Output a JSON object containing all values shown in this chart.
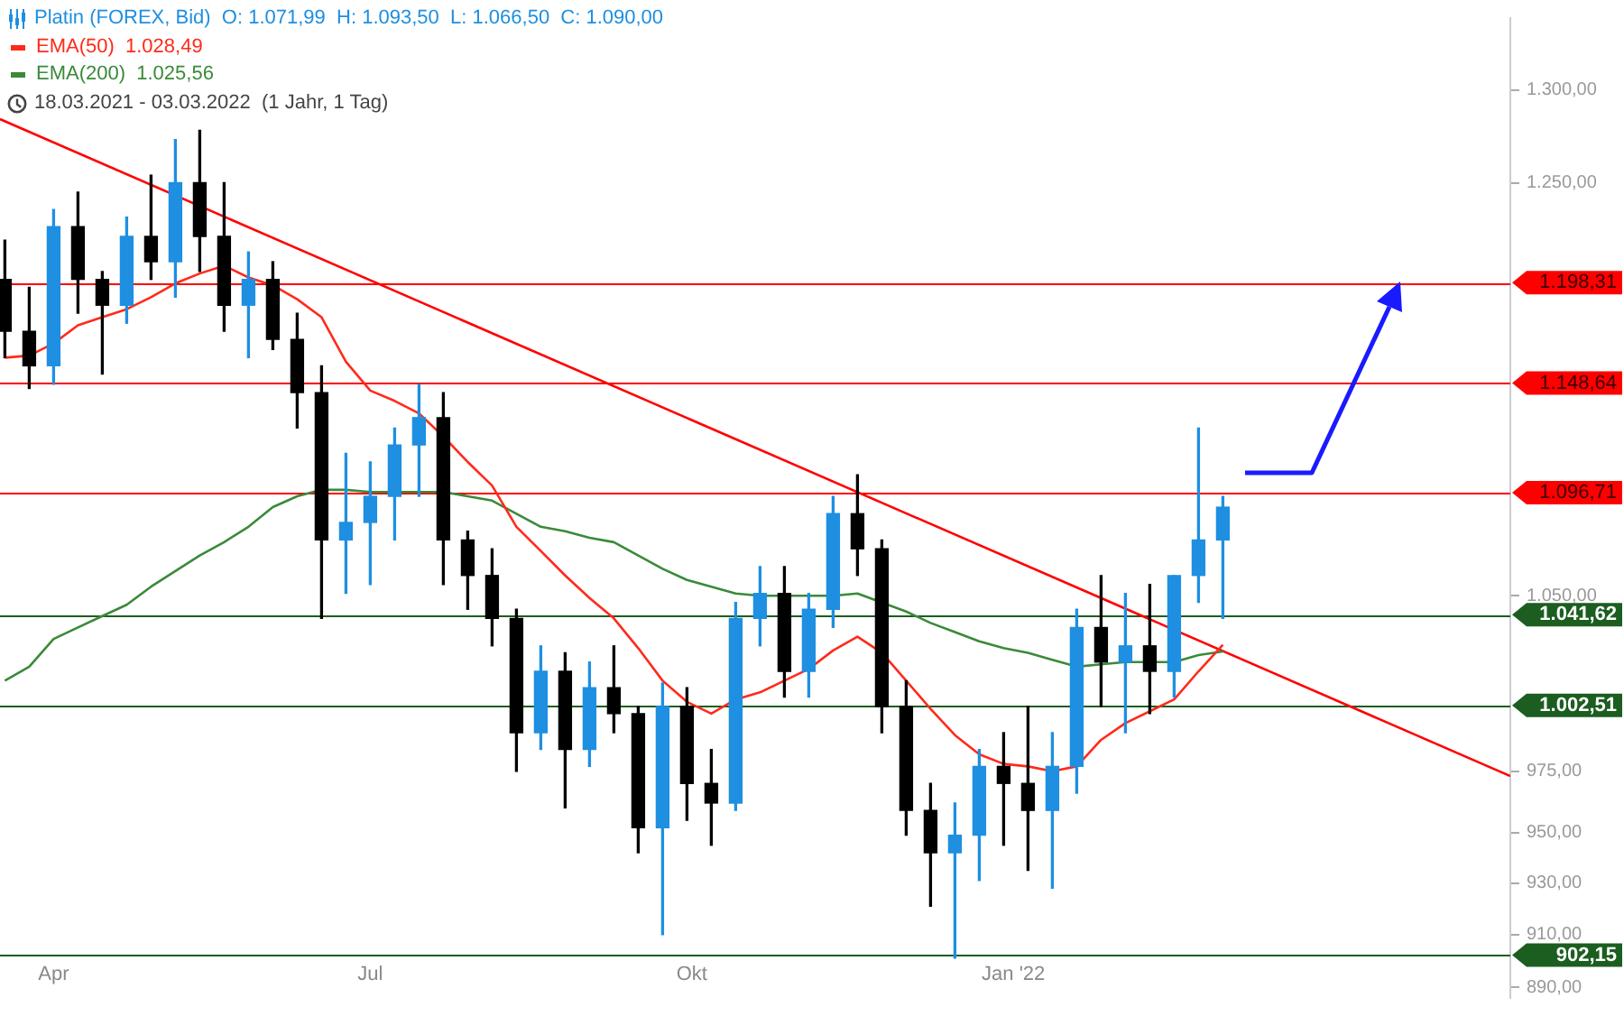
{
  "chart_data": {
    "type": "candlestick",
    "log": "y",
    "legend": "top left",
    "marker": "none",
    "line_style": "solid",
    "x": [
      "2021-03-18",
      "2021-03-25",
      "2021-04-01",
      "2021-04-08",
      "2021-04-15",
      "2021-04-22",
      "2021-04-29",
      "2021-05-06",
      "2021-05-13",
      "2021-05-20",
      "2021-05-27",
      "2021-06-03",
      "2021-06-10",
      "2021-06-17",
      "2021-06-24",
      "2021-07-01",
      "2021-07-08",
      "2021-07-15",
      "2021-07-22",
      "2021-07-29",
      "2021-08-05",
      "2021-08-12",
      "2021-08-19",
      "2021-08-26",
      "2021-09-02",
      "2021-09-09",
      "2021-09-16",
      "2021-09-23",
      "2021-09-30",
      "2021-10-07",
      "2021-10-14",
      "2021-10-21",
      "2021-10-28",
      "2021-11-04",
      "2021-11-11",
      "2021-11-18",
      "2021-11-25",
      "2021-12-02",
      "2021-12-09",
      "2021-12-16",
      "2021-12-23",
      "2021-12-30",
      "2022-01-06",
      "2022-01-13",
      "2022-01-20",
      "2022-01-27",
      "2022-02-03",
      "2022-02-10",
      "2022-02-17",
      "2022-02-24",
      "2022-03-03"
    ],
    "xlim": [
      "2021-03-17",
      "2022-05-25"
    ],
    "xticks": [
      {
        "value": "2021-04-01",
        "label": "Apr"
      },
      {
        "value": "2021-07-01",
        "label": "Jul"
      },
      {
        "value": "2021-10-01",
        "label": "Okt"
      },
      {
        "value": "2022-01-03",
        "label": "Jan '22"
      }
    ],
    "ylim": [
      886,
      1340
    ],
    "yticks": [
      {
        "value": 1300,
        "label": "1.300,00"
      },
      {
        "value": 1250,
        "label": "1.250,00"
      },
      {
        "value": 1050,
        "label": "1.050,00"
      },
      {
        "value": 975,
        "label": "975,00"
      },
      {
        "value": 950,
        "label": "950,00"
      },
      {
        "value": 930,
        "label": "930,00"
      },
      {
        "value": 910,
        "label": "910,00"
      },
      {
        "value": 890,
        "label": "890,00"
      }
    ],
    "annotations": [
      "O: 1.071,99  H: 1.093,50  L: 1.066,50  C: 1.090,00",
      "18.03.2021 - 03.03.2022  (1 Jahr, 1 Tag)"
    ],
    "ref_lines": [
      {
        "axis": "y",
        "value": 1198.31,
        "label": "1.198,31",
        "color": "#ff0000"
      },
      {
        "axis": "y",
        "value": 1148.64,
        "label": "1.148,64",
        "color": "#ff0000"
      },
      {
        "axis": "y",
        "value": 1096.71,
        "label": "1.096,71",
        "color": "#ff0000"
      },
      {
        "axis": "y",
        "value": 1041.62,
        "label": "1.041,62",
        "color": "#1b5e20"
      },
      {
        "axis": "y",
        "value": 1002.51,
        "label": "1.002,51",
        "color": "#1b5e20"
      },
      {
        "axis": "y",
        "value": 902.15,
        "label": "902,15",
        "color": "#1b5e20"
      }
    ],
    "series": [
      {
        "name": "Platin (FOREX, Bid)",
        "color": "#1e8fe1",
        "colors": [
          "#000000",
          "#000000",
          "#1e8fe1",
          "#000000",
          "#000000",
          "#1e8fe1",
          "#000000",
          "#1e8fe1",
          "#000000",
          "#000000",
          "#1e8fe1",
          "#000000",
          "#000000",
          "#000000",
          "#1e8fe1",
          "#1e8fe1",
          "#1e8fe1",
          "#1e8fe1",
          "#000000",
          "#000000",
          "#000000",
          "#000000",
          "#1e8fe1",
          "#000000",
          "#1e8fe1",
          "#000000",
          "#000000",
          "#1e8fe1",
          "#000000",
          "#000000",
          "#1e8fe1",
          "#1e8fe1",
          "#000000",
          "#1e8fe1",
          "#1e8fe1",
          "#000000",
          "#000000",
          "#000000",
          "#000000",
          "#1e8fe1",
          "#1e8fe1",
          "#000000",
          "#000000",
          "#1e8fe1",
          "#1e8fe1",
          "#000000",
          "#1e8fe1",
          "#000000",
          "#1e8fe1",
          "#1e8fe1",
          "#1e8fe1"
        ],
        "ohlc": [
          [
            1200,
            1220,
            1161,
            1174
          ],
          [
            1174,
            1196,
            1146,
            1157
          ],
          [
            1157,
            1236,
            1148,
            1227
          ],
          [
            1227,
            1245,
            1183,
            1200
          ],
          [
            1200,
            1204,
            1153,
            1187
          ],
          [
            1187,
            1232,
            1178,
            1222
          ],
          [
            1222,
            1254,
            1200,
            1209
          ],
          [
            1209,
            1273,
            1191,
            1250
          ],
          [
            1250,
            1278,
            1204,
            1222
          ],
          [
            1222,
            1250,
            1174,
            1187
          ],
          [
            1187,
            1214,
            1161,
            1200
          ],
          [
            1200,
            1209,
            1165,
            1170
          ],
          [
            1170,
            1183,
            1127,
            1144
          ],
          [
            1144,
            1157,
            1040,
            1075
          ],
          [
            1075,
            1115,
            1051,
            1083
          ],
          [
            1083,
            1111,
            1055,
            1095
          ],
          [
            1095,
            1127,
            1075,
            1119
          ],
          [
            1119,
            1148,
            1095,
            1132
          ],
          [
            1132,
            1144,
            1055,
            1075
          ],
          [
            1075,
            1079,
            1044,
            1059
          ],
          [
            1059,
            1071,
            1028,
            1040
          ],
          [
            1040,
            1044,
            975,
            991
          ],
          [
            991,
            1028,
            984,
            1017
          ],
          [
            1017,
            1025,
            960,
            984
          ],
          [
            984,
            1021,
            977,
            1010
          ],
          [
            1010,
            1028,
            991,
            999
          ],
          [
            999,
            1002,
            942,
            952
          ],
          [
            952,
            1012,
            910,
            1002
          ],
          [
            1002,
            1010,
            955,
            970
          ],
          [
            970,
            984,
            945,
            962
          ],
          [
            962,
            1047,
            959,
            1040
          ],
          [
            1040,
            1063,
            1028,
            1051
          ],
          [
            1051,
            1063,
            1006,
            1017
          ],
          [
            1017,
            1051,
            1006,
            1044
          ],
          [
            1044,
            1095,
            1036,
            1087
          ],
          [
            1087,
            1105,
            1059,
            1071
          ],
          [
            1071,
            1075,
            991,
            1002
          ],
          [
            1002,
            1013,
            949,
            959
          ],
          [
            959,
            970,
            921,
            942
          ],
          [
            942,
            962,
            901,
            949
          ],
          [
            949,
            984,
            931,
            977
          ],
          [
            977,
            991,
            945,
            970
          ],
          [
            970,
            1002,
            935,
            959
          ],
          [
            959,
            991,
            928,
            977
          ],
          [
            977,
            1044,
            966,
            1036
          ],
          [
            1036,
            1059,
            1002,
            1021
          ],
          [
            1021,
            1051,
            991,
            1028
          ],
          [
            1028,
            1055,
            999,
            1017
          ],
          [
            1017,
            1059,
            1006,
            1059
          ],
          [
            1059,
            1127,
            1047,
            1075
          ],
          [
            1075,
            1095,
            1040,
            1090
          ]
        ]
      },
      {
        "name": "EMA(50)  1.028,49",
        "type": "line",
        "color": "#ff2a1a",
        "values": [
          1161,
          1162,
          1168,
          1177,
          1181,
          1185,
          1191,
          1198,
          1203,
          1207,
          1201,
          1197,
          1190,
          1181,
          1159,
          1145,
          1140,
          1134,
          1123,
          1111,
          1100,
          1081,
          1070,
          1059,
          1049,
          1040,
          1027,
          1013,
          1004,
          999,
          1005,
          1008,
          1013,
          1018,
          1026,
          1032,
          1025,
          1013,
          1001,
          990,
          982,
          978,
          977,
          975,
          977,
          988,
          995,
          1000,
          1005,
          1017,
          1028.49
        ]
      },
      {
        "name": "EMA(200)  1.025,56",
        "type": "line",
        "color": "#3a8a3a",
        "values": [
          1013,
          1019,
          1031,
          1036,
          1041,
          1046,
          1054,
          1061,
          1068,
          1074,
          1081,
          1090,
          1095,
          1098,
          1098,
          1097,
          1097,
          1097,
          1097,
          1095,
          1093,
          1087,
          1081,
          1079,
          1076,
          1074,
          1068,
          1062,
          1057,
          1054,
          1051,
          1050,
          1050,
          1050,
          1050,
          1051,
          1047,
          1043,
          1038,
          1034,
          1030,
          1027,
          1025,
          1022,
          1019,
          1020,
          1021,
          1021,
          1021,
          1024,
          1025.56
        ]
      },
      {
        "type": "line",
        "color": "#ff0000",
        "x": [
          "2021-03-17",
          "2022-05-25"
        ],
        "values": [
          1284,
          973
        ]
      }
    ]
  }
}
